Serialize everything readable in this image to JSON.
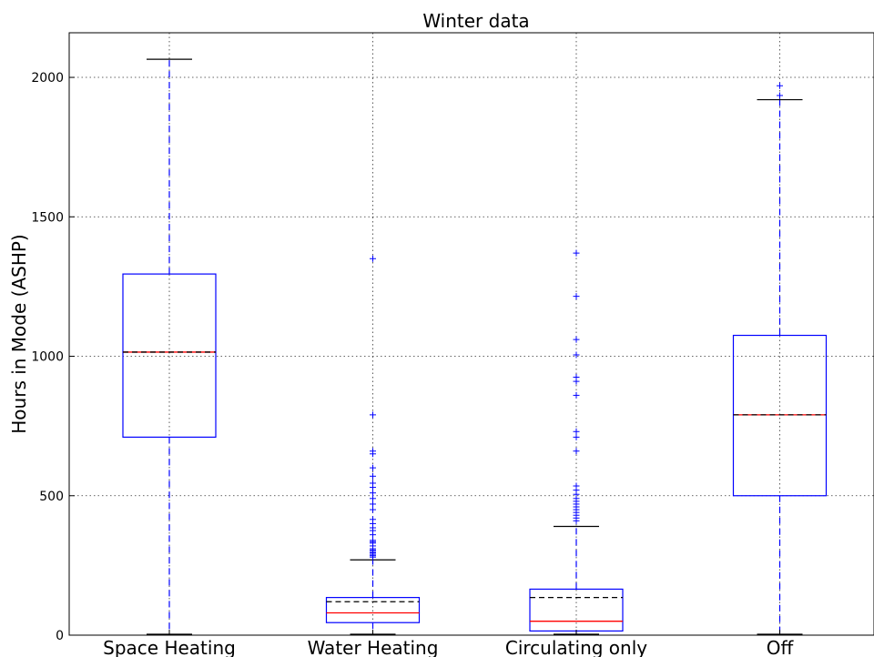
{
  "chart_data": {
    "type": "box",
    "title": "Winter data",
    "ylabel": "Hours in Mode (ASHP)",
    "xlabel": "",
    "ylim": [
      0,
      2160
    ],
    "yticks": [
      0,
      500,
      1000,
      1500,
      2000
    ],
    "grid": true,
    "colors": {
      "box": "#0000ff",
      "median": "#ff0000",
      "mean": "#000000",
      "whisker": "#0000ff",
      "cap": "#000000",
      "flier": "#0000ff"
    },
    "categories": [
      "Space Heating",
      "Water Heating",
      "Circulating only",
      "Off"
    ],
    "boxes": [
      {
        "whislo": 0,
        "q1": 710,
        "med": 1015,
        "mean": 1015,
        "q3": 1295,
        "whishi": 2065,
        "fliers": []
      },
      {
        "whislo": 0,
        "q1": 45,
        "med": 80,
        "mean": 120,
        "q3": 135,
        "whishi": 270,
        "fliers": [
          280,
          285,
          290,
          295,
          300,
          305,
          310,
          320,
          330,
          335,
          340,
          360,
          375,
          385,
          400,
          415,
          450,
          470,
          490,
          510,
          530,
          545,
          570,
          600,
          650,
          660,
          790,
          1350
        ]
      },
      {
        "whislo": 0,
        "q1": 15,
        "med": 50,
        "mean": 135,
        "q3": 165,
        "whishi": 390,
        "fliers": [
          410,
          420,
          430,
          440,
          450,
          460,
          470,
          480,
          490,
          505,
          520,
          535,
          660,
          710,
          730,
          860,
          910,
          925,
          1005,
          1060,
          1215,
          1370
        ]
      },
      {
        "whislo": 0,
        "q1": 500,
        "med": 790,
        "mean": 790,
        "q3": 1075,
        "whishi": 1920,
        "fliers": [
          1935,
          1970
        ]
      }
    ]
  }
}
